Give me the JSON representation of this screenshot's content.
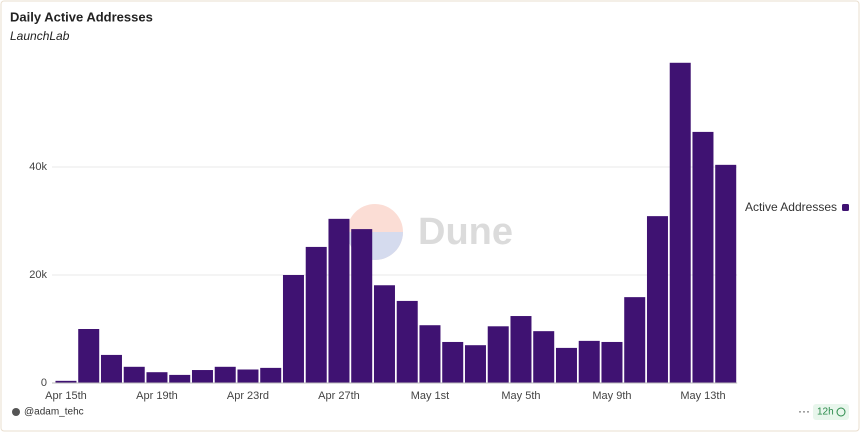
{
  "chart_data": {
    "type": "bar",
    "title": "Daily Active Addresses",
    "subtitle": "LaunchLab",
    "watermark": "Dune",
    "categories": [
      "Apr 15th",
      null,
      null,
      null,
      "Apr 19th",
      null,
      null,
      null,
      "Apr 23rd",
      null,
      null,
      null,
      "Apr 27th",
      null,
      null,
      null,
      "May 1st",
      null,
      null,
      null,
      "May 5th",
      null,
      null,
      null,
      "May 9th",
      null,
      null,
      null,
      "May 13th",
      null
    ],
    "series": [
      {
        "name": "Active Addresses",
        "color": "#3f1272",
        "values": [
          400,
          10000,
          5200,
          3000,
          2000,
          1500,
          2400,
          3000,
          2500,
          2800,
          20000,
          25200,
          30400,
          28500,
          18100,
          15200,
          10700,
          7600,
          7000,
          10500,
          12400,
          9600,
          6500,
          7800,
          7600,
          15900,
          30900,
          59300,
          46500,
          40400
        ]
      }
    ],
    "ylim": [
      0,
      60000
    ],
    "yticks": [
      0,
      {
        "value": 20000,
        "label": "20k"
      },
      {
        "value": 40000,
        "label": "40k"
      }
    ],
    "grid": true,
    "legend": "right",
    "footer": {
      "author": "@adam_tehc",
      "refresh": "12h"
    }
  }
}
